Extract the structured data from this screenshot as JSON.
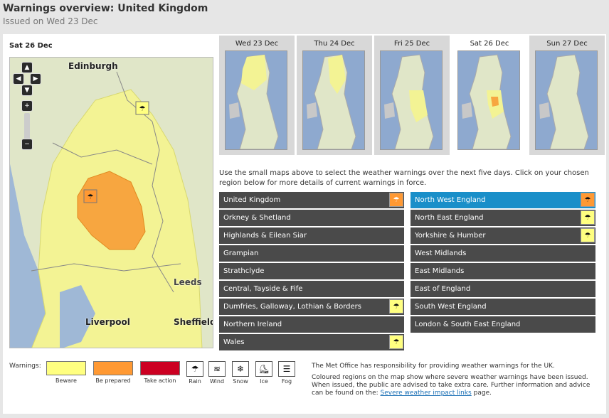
{
  "header": {
    "title": "Warnings overview: United Kingdom",
    "issued": "Issued on Wed 23 Dec"
  },
  "map": {
    "current_day": "Sat 26 Dec",
    "places": [
      "Edinburgh",
      "Leeds",
      "Liverpool",
      "Sheffield"
    ],
    "nav": {
      "up": "▲",
      "down": "▼",
      "left": "◀",
      "right": "▶",
      "zoom_in": "+",
      "zoom_out": "−"
    }
  },
  "days": [
    {
      "label": "Wed 23 Dec",
      "active": false
    },
    {
      "label": "Thu 24 Dec",
      "active": false
    },
    {
      "label": "Fri 25 Dec",
      "active": false
    },
    {
      "label": "Sat 26 Dec",
      "active": true
    },
    {
      "label": "Sun 27 Dec",
      "active": false
    }
  ],
  "instructions": "Use the small maps above to select the weather warnings over the next five days. Click on your chosen region below for more details of current warnings in force.",
  "regions_left": [
    {
      "label": "United Kingdom",
      "warning": "orange"
    },
    {
      "label": "Orkney & Shetland",
      "warning": ""
    },
    {
      "label": "Highlands & Eilean Siar",
      "warning": ""
    },
    {
      "label": "Grampian",
      "warning": ""
    },
    {
      "label": "Strathclyde",
      "warning": ""
    },
    {
      "label": "Central, Tayside & Fife",
      "warning": ""
    },
    {
      "label": "Dumfries, Galloway, Lothian & Borders",
      "warning": "yellow"
    },
    {
      "label": "Northern Ireland",
      "warning": ""
    },
    {
      "label": "Wales",
      "warning": "yellow"
    }
  ],
  "regions_right": [
    {
      "label": "North West England",
      "warning": "orange",
      "selected": true
    },
    {
      "label": "North East England",
      "warning": "yellow"
    },
    {
      "label": "Yorkshire & Humber",
      "warning": "yellow"
    },
    {
      "label": "West Midlands",
      "warning": ""
    },
    {
      "label": "East Midlands",
      "warning": ""
    },
    {
      "label": "East of England",
      "warning": ""
    },
    {
      "label": "South West England",
      "warning": ""
    },
    {
      "label": "London & South East England",
      "warning": ""
    }
  ],
  "legend": {
    "label": "Warnings:",
    "levels": [
      {
        "name": "Beware",
        "color": "#ffff80"
      },
      {
        "name": "Be prepared",
        "color": "#ff9933"
      },
      {
        "name": "Take action",
        "color": "#cc0022"
      }
    ],
    "types": [
      {
        "name": "Rain",
        "icon": "rain-icon",
        "glyph": "☂"
      },
      {
        "name": "Wind",
        "icon": "wind-icon",
        "glyph": "≋"
      },
      {
        "name": "Snow",
        "icon": "snow-icon",
        "glyph": "❄"
      },
      {
        "name": "Ice",
        "icon": "ice-icon",
        "glyph": "⛸"
      },
      {
        "name": "Fog",
        "icon": "fog-icon",
        "glyph": "☰"
      }
    ]
  },
  "notes": {
    "p1": "The Met Office has responsibility for providing weather warnings for the UK.",
    "p2_text": "Coloured regions on the map show where severe weather warnings have been issued. When issued, the public are advised to take extra care. Further information and advice can be found on the:",
    "link": "Severe weather impact links",
    "p2_end": "page."
  },
  "colors": {
    "beware": "#ffff80",
    "prepared": "#ff9933",
    "selected": "#1a8fc9",
    "region_bg": "#4a4a4a"
  }
}
